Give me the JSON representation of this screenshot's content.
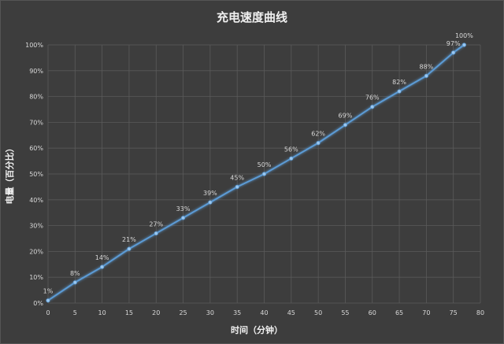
{
  "chart_data": {
    "type": "line",
    "title": "充电速度曲线",
    "xlabel": "时间（分钟）",
    "ylabel": "电量（百分比）",
    "xlim": [
      0,
      80
    ],
    "ylim": [
      0,
      100
    ],
    "x_ticks": [
      0,
      5,
      10,
      15,
      20,
      25,
      30,
      35,
      40,
      45,
      50,
      55,
      60,
      65,
      70,
      75,
      80
    ],
    "y_ticks": [
      0,
      10,
      20,
      30,
      40,
      50,
      60,
      70,
      80,
      90,
      100
    ],
    "y_tick_labels": [
      "0%",
      "10%",
      "20%",
      "30%",
      "40%",
      "50%",
      "60%",
      "70%",
      "80%",
      "90%",
      "100%"
    ],
    "grid": true,
    "legend": "none",
    "colors": {
      "background": "#3d3d3d",
      "grid": "#5a5a5a",
      "line": "#5b9bd5",
      "text": "#d9d9d9"
    },
    "series": [
      {
        "x": [
          0,
          5,
          10,
          15,
          20,
          25,
          30,
          35,
          40,
          45,
          50,
          55,
          60,
          65,
          70,
          75,
          77
        ],
        "values": [
          1,
          8,
          14,
          21,
          27,
          33,
          39,
          45,
          50,
          56,
          62,
          69,
          76,
          82,
          88,
          97,
          100
        ],
        "labels": [
          "1%",
          "8%",
          "14%",
          "21%",
          "27%",
          "33%",
          "39%",
          "45%",
          "50%",
          "56%",
          "62%",
          "69%",
          "76%",
          "82%",
          "88%",
          "97%",
          "100%"
        ]
      }
    ]
  }
}
